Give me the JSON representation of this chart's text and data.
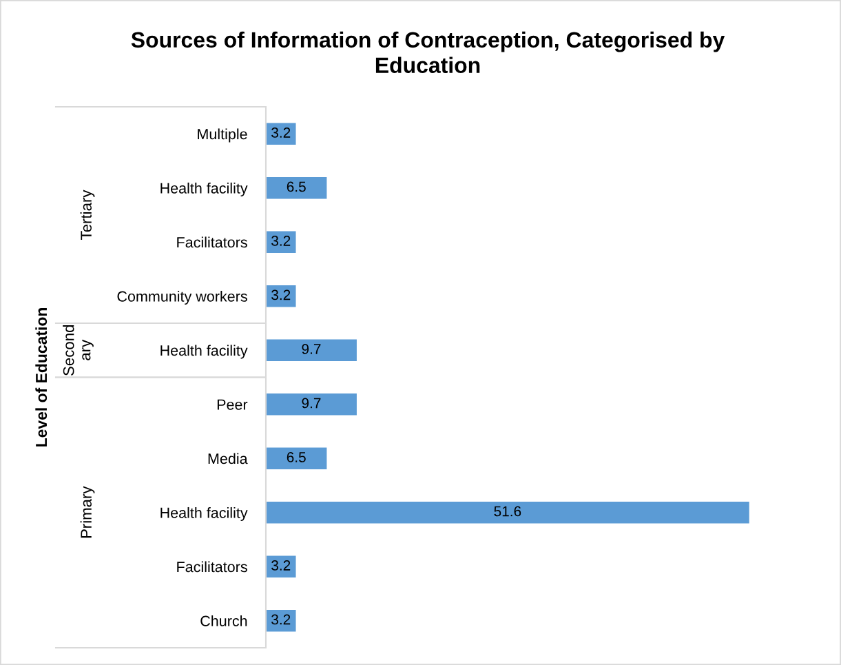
{
  "chart_data": [
    {
      "type": "bar",
      "orientation": "horizontal",
      "title": "Sources of Information of Contraception, Categorised by\nEducation",
      "ylabel": "Tertiary",
      "categories": [
        "Multiple",
        "Health facility",
        "Facilitators",
        "Community workers"
      ],
      "values": [
        3.2,
        6.5,
        3.2,
        3.2
      ],
      "color": "#5b9bd5",
      "data_labels": true,
      "tick_labels": "y"
    },
    {
      "type": "bar",
      "orientation": "horizontal",
      "ylabel": "Second\nary",
      "annotations": [
        "Level of Education"
      ],
      "categories": [
        "Health facility"
      ],
      "values": [
        9.7
      ],
      "color": "#5b9bd5",
      "data_labels": true,
      "tick_labels": "y"
    },
    {
      "type": "bar",
      "orientation": "horizontal",
      "ylabel": "Primary",
      "categories": [
        "Peer",
        "Media",
        "Health facility",
        "Facilitators",
        "Church"
      ],
      "values": [
        9.7,
        6.5,
        51.6,
        3.2,
        3.2
      ],
      "color": "#5b9bd5",
      "data_labels": true,
      "tick_labels": "y"
    }
  ]
}
